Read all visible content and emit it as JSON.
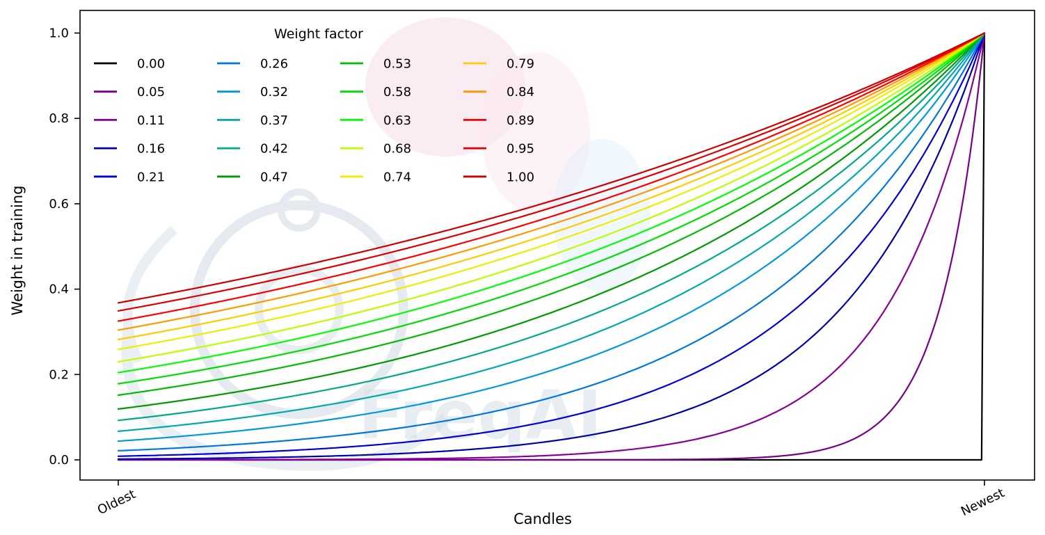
{
  "chart_data": {
    "type": "line",
    "legend_title": "Weight factor",
    "xlabel": "Candles",
    "ylabel": "Weight in training",
    "x_tick_labels": [
      "Oldest",
      "Newest"
    ],
    "y_ticks": [
      "0.0",
      "0.2",
      "0.4",
      "0.6",
      "0.8",
      "1.0"
    ],
    "ylim": [
      -0.05,
      1.05
    ],
    "grid": false,
    "legend_position": "upper left, 4 columns, column-major",
    "formula": "weight(t) = exp(-(1 - t) / weight_factor), t in [0,1] from Oldest candle to Newest candle; weight_factor = 0 gives 0 everywhere except 1 at the newest candle",
    "series": [
      {
        "label": "0.00",
        "factor": 0.0,
        "color": "#000000",
        "y_oldest": 0.0,
        "y_newest": 1.0
      },
      {
        "label": "0.05",
        "factor": 0.05,
        "color": "#770088",
        "y_oldest": 0.0,
        "y_newest": 1.0
      },
      {
        "label": "0.11",
        "factor": 0.11,
        "color": "#880099",
        "y_oldest": 0.0001,
        "y_newest": 1.0
      },
      {
        "label": "0.16",
        "factor": 0.16,
        "color": "#0000aa",
        "y_oldest": 0.0019,
        "y_newest": 1.0
      },
      {
        "label": "0.21",
        "factor": 0.21,
        "color": "#0000dd",
        "y_oldest": 0.0086,
        "y_newest": 1.0
      },
      {
        "label": "0.26",
        "factor": 0.26,
        "color": "#0077dd",
        "y_oldest": 0.0214,
        "y_newest": 1.0
      },
      {
        "label": "0.32",
        "factor": 0.32,
        "color": "#0099dd",
        "y_oldest": 0.0439,
        "y_newest": 1.0
      },
      {
        "label": "0.37",
        "factor": 0.37,
        "color": "#00aaaa",
        "y_oldest": 0.067,
        "y_newest": 1.0
      },
      {
        "label": "0.42",
        "factor": 0.42,
        "color": "#00aa88",
        "y_oldest": 0.0925,
        "y_newest": 1.0
      },
      {
        "label": "0.47",
        "factor": 0.47,
        "color": "#009900",
        "y_oldest": 0.1191,
        "y_newest": 1.0
      },
      {
        "label": "0.53",
        "factor": 0.53,
        "color": "#00bb00",
        "y_oldest": 0.1516,
        "y_newest": 1.0
      },
      {
        "label": "0.58",
        "factor": 0.58,
        "color": "#00dd00",
        "y_oldest": 0.1783,
        "y_newest": 1.0
      },
      {
        "label": "0.63",
        "factor": 0.63,
        "color": "#00ff00",
        "y_oldest": 0.2044,
        "y_newest": 1.0
      },
      {
        "label": "0.68",
        "factor": 0.68,
        "color": "#bbff00",
        "y_oldest": 0.2298,
        "y_newest": 1.0
      },
      {
        "label": "0.74",
        "factor": 0.74,
        "color": "#eeee00",
        "y_oldest": 0.2589,
        "y_newest": 1.0
      },
      {
        "label": "0.79",
        "factor": 0.79,
        "color": "#ffcc00",
        "y_oldest": 0.282,
        "y_newest": 1.0
      },
      {
        "label": "0.84",
        "factor": 0.84,
        "color": "#ff9900",
        "y_oldest": 0.3041,
        "y_newest": 1.0
      },
      {
        "label": "0.89",
        "factor": 0.89,
        "color": "#ff0000",
        "y_oldest": 0.3251,
        "y_newest": 1.0
      },
      {
        "label": "0.95",
        "factor": 0.95,
        "color": "#dd0000",
        "y_oldest": 0.349,
        "y_newest": 1.0
      },
      {
        "label": "1.00",
        "factor": 1.0,
        "color": "#cc0000",
        "y_oldest": 0.3679,
        "y_newest": 1.0
      }
    ]
  },
  "watermark": {
    "text": "FreqAI"
  }
}
